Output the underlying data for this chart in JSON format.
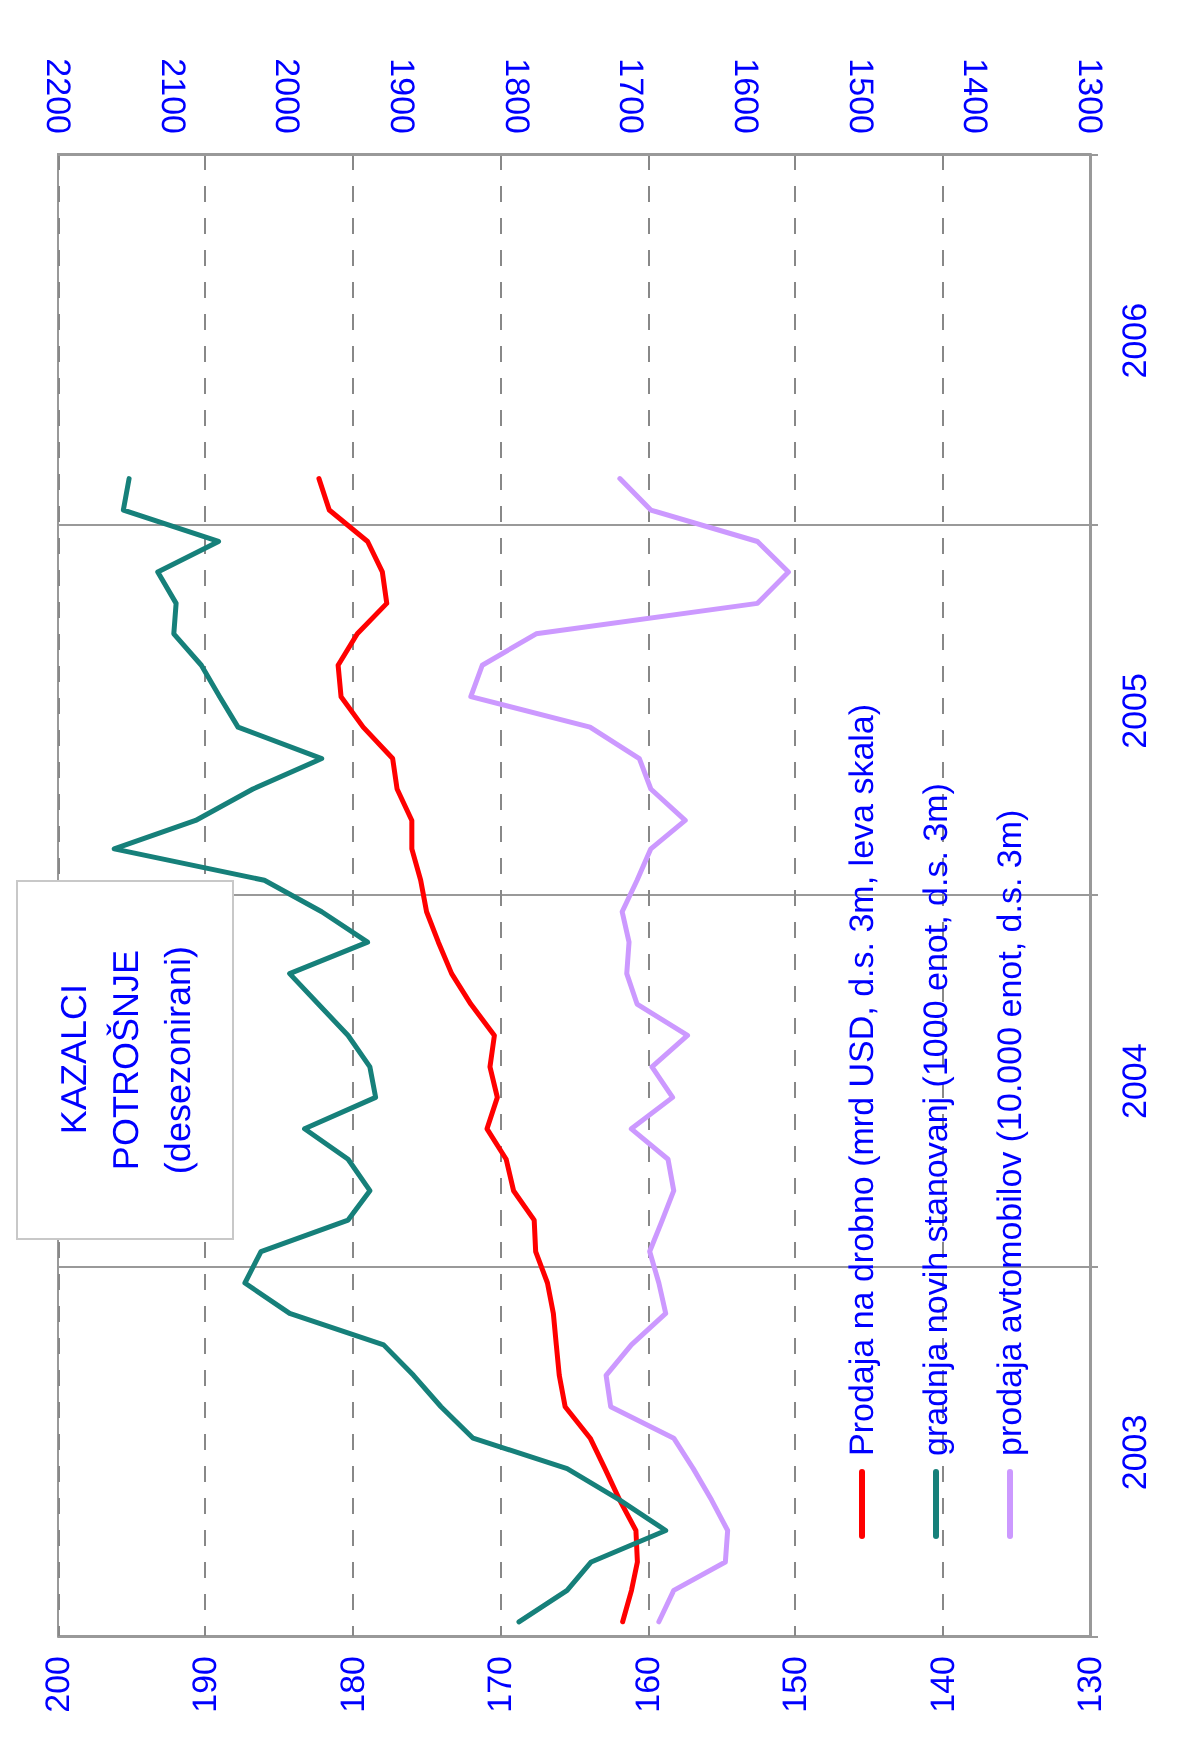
{
  "chart_data": {
    "type": "line",
    "orientation": "horizontal",
    "title": "KAZALCI POTROŠNJE",
    "subtitle": "(desezonirani)",
    "x": [
      "2003-01-15",
      "2003-02-15",
      "2003-03-15",
      "2003-04-15",
      "2003-05-15",
      "2003-06-15",
      "2003-07-15",
      "2003-08-15",
      "2003-09-15",
      "2003-10-15",
      "2003-11-15",
      "2003-12-15",
      "2004-01-15",
      "2004-02-15",
      "2004-03-15",
      "2004-04-15",
      "2004-05-15",
      "2004-06-15",
      "2004-07-15",
      "2004-08-15",
      "2004-09-15",
      "2004-10-15",
      "2004-11-15",
      "2004-12-15",
      "2005-01-15",
      "2005-02-15",
      "2005-03-15",
      "2005-04-15",
      "2005-05-15",
      "2005-06-15",
      "2005-07-15",
      "2005-08-15",
      "2005-09-15",
      "2005-10-15",
      "2005-11-15",
      "2005-12-15",
      "2006-01-15",
      "2006-02-15"
    ],
    "series": [
      {
        "name": "Prodaja na drobno (mrd USD, d.s. 3m, leva skala)",
        "color": "#ff0000",
        "values": [
          161.7,
          161.1,
          160.7,
          160.8,
          161.9,
          162.9,
          163.9,
          165.6,
          166.0,
          166.2,
          166.4,
          166.8,
          167.6,
          167.7,
          169.1,
          169.6,
          170.9,
          170.2,
          170.7,
          170.4,
          172.0,
          173.3,
          174.2,
          175.0,
          175.4,
          176.0,
          176.0,
          177.0,
          177.3,
          179.3,
          180.8,
          181.0,
          179.7,
          177.7,
          178.0,
          179.0,
          181.6,
          182.3
        ]
      },
      {
        "name": "gradnja novih stanovanj (1000 enot, d.s. 3m)",
        "color": "#16807a",
        "axis": "x2",
        "values": [
          1798,
          1756,
          1735,
          1670,
          1710,
          1756,
          1838,
          1866,
          1890,
          1916,
          1998,
          2037,
          2023,
          1947,
          1928,
          1947,
          1985,
          1923,
          1928,
          1947,
          1973,
          1998,
          1930,
          1970,
          2020,
          2151,
          2080,
          2030,
          1970,
          2043,
          2059,
          2075,
          2099,
          2097,
          2113,
          2060,
          2143,
          2138
        ]
      },
      {
        "name": "prodaja avtomobilov (10.000 enot, d.s. 3m)",
        "color": "#cc99ff",
        "axis": "x2",
        "values": [
          1676,
          1663,
          1618,
          1616,
          1630,
          1646,
          1663,
          1718,
          1722,
          1700,
          1670,
          1676,
          1684,
          1673,
          1663,
          1668,
          1700,
          1664,
          1682,
          1651,
          1695,
          1704,
          1702,
          1708,
          1695,
          1683,
          1653,
          1683,
          1693,
          1736,
          1840,
          1830,
          1783,
          1590,
          1563,
          1590,
          1683,
          1710
        ]
      }
    ],
    "ylim": [
      "2003-01",
      "2007-01"
    ],
    "yticks": [
      {
        "value": "2003-01",
        "label": null
      },
      {
        "value": "2004-01",
        "label": null
      },
      {
        "value": "2005-01",
        "label": null
      },
      {
        "value": "2006-01",
        "label": null
      },
      {
        "value": "2007-01",
        "label": null
      },
      {
        "value": "2003-07",
        "label": "2003"
      },
      {
        "value": "2004-07",
        "label": "2004"
      },
      {
        "value": "2005-07",
        "label": "2005"
      },
      {
        "value": "2006-07",
        "label": "2006"
      }
    ],
    "xlim": [
      200,
      130
    ],
    "xticks": [
      200,
      190,
      180,
      170,
      160,
      150,
      140,
      130
    ],
    "x2lim": [
      2200,
      1300
    ],
    "x2ticks": [
      2200,
      2100,
      2000,
      1900,
      1800,
      1700,
      1600,
      1500,
      1400,
      1300
    ],
    "grid": true,
    "legend": "bottom right",
    "marker": "none",
    "line_style": "solid"
  }
}
